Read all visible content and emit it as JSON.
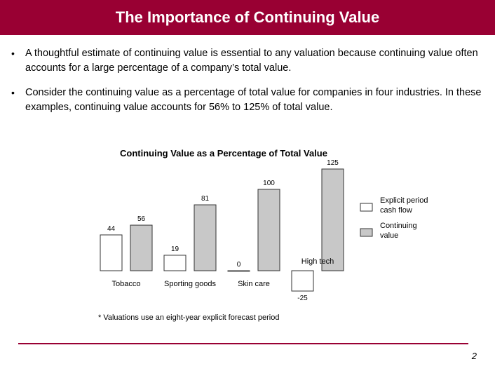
{
  "header": {
    "title": "The Importance of Continuing Value"
  },
  "bullets": [
    "A thoughtful estimate of continuing value is essential to any valuation because continuing value often accounts for a large percentage of a company’s total value.",
    "Consider the continuing value as a percentage of total value for companies in four industries.  In these examples, continuing value accounts for 56% to 125% of total value."
  ],
  "bullet_glyph": "•",
  "chart_data": {
    "type": "bar",
    "title": "Continuing Value as a Percentage of Total Value",
    "categories": [
      "Tobacco",
      "Sporting goods",
      "Skin care",
      "High tech"
    ],
    "series": [
      {
        "name": "Explicit period cash flow",
        "values": [
          44,
          19,
          0,
          -25
        ],
        "color": "#ffffff"
      },
      {
        "name": "Continuing value",
        "values": [
          56,
          81,
          100,
          125
        ],
        "color": "#c8c8c8"
      }
    ],
    "value_labels": [
      [
        "44",
        "19",
        "0",
        "-25"
      ],
      [
        "56",
        "81",
        "100",
        "125"
      ]
    ],
    "legend_lines": [
      [
        "Explicit period",
        "cash flow"
      ],
      [
        "Continuing",
        "value"
      ]
    ],
    "ylim": [
      -25,
      125
    ],
    "grid": false,
    "legend_position": "right"
  },
  "footnote": "* Valuations use an eight-year explicit forecast period",
  "page_number": "2",
  "colors": {
    "accent": "#990033",
    "continuing_fill": "#c8c8c8",
    "bar_stroke": "#333333"
  }
}
